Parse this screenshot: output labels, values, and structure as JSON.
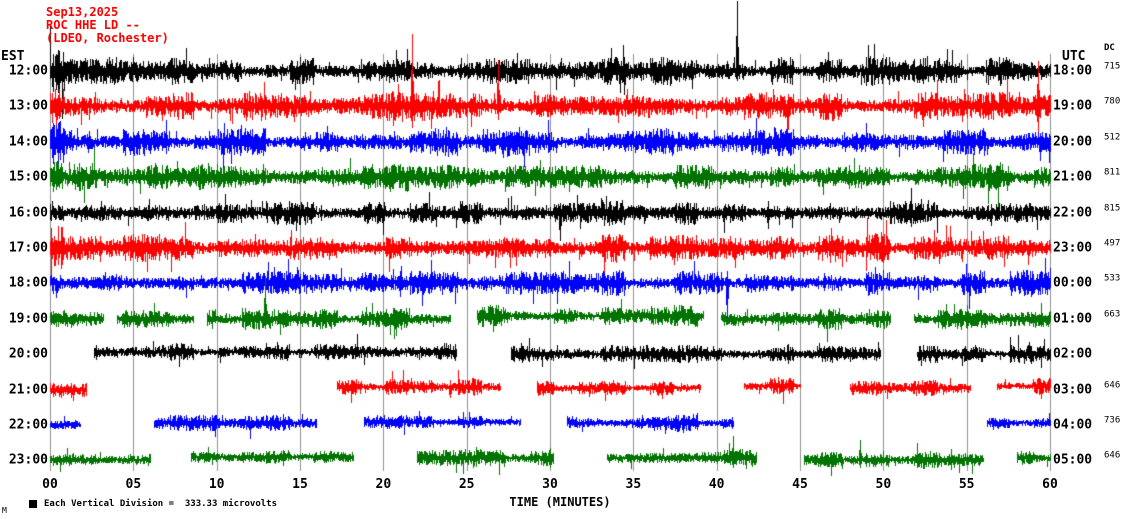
{
  "header": {
    "date": "Sep13,2025",
    "station": "ROC HHE LD --",
    "location": "(LDEO, Rochester)"
  },
  "axes": {
    "left_label": "EST",
    "right_label": "UTC",
    "dc_label": "DC",
    "x_label": "TIME (MINUTES)",
    "x_ticks": [
      "00",
      "05",
      "10",
      "15",
      "20",
      "25",
      "30",
      "35",
      "40",
      "45",
      "50",
      "55",
      "60"
    ]
  },
  "footer": {
    "scale_note": "Each Vertical Division =  333.33 microvolts",
    "corner_mark": "M"
  },
  "colors": {
    "black": "#000000",
    "red": "#ff0000",
    "blue": "#0000ff",
    "green": "#007300",
    "header_red": "#ff0000",
    "grid": "#909090"
  },
  "chart_data": {
    "type": "line",
    "kind": "helicorder-seismogram",
    "x_range_minutes": [
      0,
      60
    ],
    "vertical_division_microvolts": 333.33,
    "rows": [
      {
        "est": "12:00",
        "utc": "18:00",
        "dc": "715",
        "color": "black",
        "amp": 10,
        "segments": [
          [
            0,
            60
          ]
        ],
        "spikes": [
          [
            41.2,
            70,
            10
          ]
        ]
      },
      {
        "est": "13:00",
        "utc": "19:00",
        "dc": "780",
        "color": "red",
        "amp": 11,
        "segments": [
          [
            0,
            60
          ]
        ],
        "spikes": [
          [
            21.7,
            72,
            22
          ],
          [
            20.9,
            22,
            12
          ],
          [
            26.9,
            46,
            14
          ],
          [
            44.3,
            12,
            24
          ],
          [
            59.3,
            45,
            26
          ]
        ]
      },
      {
        "est": "14:00",
        "utc": "20:00",
        "dc": "512",
        "color": "blue",
        "amp": 10,
        "segments": [
          [
            0,
            60
          ]
        ],
        "spikes": [
          [
            0.6,
            20,
            18
          ],
          [
            27.2,
            10,
            16
          ]
        ]
      },
      {
        "est": "15:00",
        "utc": "21:00",
        "dc": "811",
        "color": "green",
        "amp": 10,
        "segments": [
          [
            0,
            60
          ]
        ],
        "spikes": [
          [
            6.3,
            14,
            12
          ],
          [
            55.4,
            24,
            10
          ]
        ]
      },
      {
        "est": "16:00",
        "utc": "22:00",
        "dc": "815",
        "color": "black",
        "amp": 9,
        "segments": [
          [
            0,
            60
          ]
        ],
        "spikes": [
          [
            30.6,
            10,
            28
          ],
          [
            43.1,
            12,
            16
          ]
        ]
      },
      {
        "est": "17:00",
        "utc": "23:00",
        "dc": "497",
        "color": "red",
        "amp": 10,
        "segments": [
          [
            0,
            60
          ]
        ],
        "spikes": [
          [
            3.0,
            12,
            14
          ],
          [
            41.1,
            10,
            20
          ]
        ]
      },
      {
        "est": "18:00",
        "utc": "00:00",
        "dc": "533",
        "color": "blue",
        "amp": 9,
        "segments": [
          [
            0,
            60
          ]
        ],
        "spikes": [
          [
            21.0,
            12,
            14
          ],
          [
            40.6,
            12,
            36
          ]
        ]
      },
      {
        "est": "19:00",
        "utc": "01:00",
        "dc": "663",
        "color": "green",
        "amp": 8,
        "segments": [
          [
            0,
            3.2
          ],
          [
            4.0,
            8.6
          ],
          [
            9.4,
            24.0
          ],
          [
            25.6,
            39.2,
            -3
          ],
          [
            40.2,
            50.4
          ],
          [
            51.8,
            60
          ]
        ],
        "spikes": [
          [
            12.9,
            42,
            10
          ],
          [
            55.0,
            14,
            10
          ]
        ]
      },
      {
        "est": "20:00",
        "utc": "02:00",
        "dc": "",
        "color": "black",
        "amp": 6.5,
        "segments": [
          [
            2.6,
            24.4,
            -2
          ],
          [
            27.6,
            49.8
          ],
          [
            52.0,
            60
          ]
        ],
        "spikes": [
          [
            44.3,
            10,
            10
          ]
        ]
      },
      {
        "est": "21:00",
        "utc": "03:00",
        "dc": "646",
        "color": "red",
        "amp": 6,
        "segments": [
          [
            0,
            2.2
          ],
          [
            17.2,
            27.0,
            -3
          ],
          [
            29.2,
            39.0,
            -2
          ],
          [
            41.6,
            45.0,
            -4
          ],
          [
            48.0,
            55.2,
            -2
          ],
          [
            56.8,
            60,
            -4
          ]
        ],
        "spikes": [
          [
            24.0,
            10,
            8
          ]
        ]
      },
      {
        "est": "22:00",
        "utc": "04:00",
        "dc": "736",
        "color": "blue",
        "amp": 6,
        "segments": [
          [
            0,
            1.8
          ],
          [
            6.2,
            16.0,
            -2
          ],
          [
            18.8,
            28.2,
            -3
          ],
          [
            31.0,
            41.0,
            -2
          ],
          [
            56.2,
            60,
            -2
          ]
        ],
        "spikes": [
          [
            38.0,
            10,
            8
          ]
        ]
      },
      {
        "est": "23:00",
        "utc": "05:00",
        "dc": "646",
        "color": "green",
        "amp": 6,
        "segments": [
          [
            0,
            6.0
          ],
          [
            8.4,
            18.2,
            -3
          ],
          [
            22.0,
            30.2,
            -2
          ],
          [
            33.4,
            42.4,
            -2
          ],
          [
            45.2,
            56.0
          ],
          [
            58.0,
            60,
            -2
          ]
        ],
        "spikes": [
          [
            30.0,
            12,
            8
          ],
          [
            41.0,
            24,
            8
          ],
          [
            48.6,
            20,
            8
          ]
        ]
      }
    ]
  }
}
